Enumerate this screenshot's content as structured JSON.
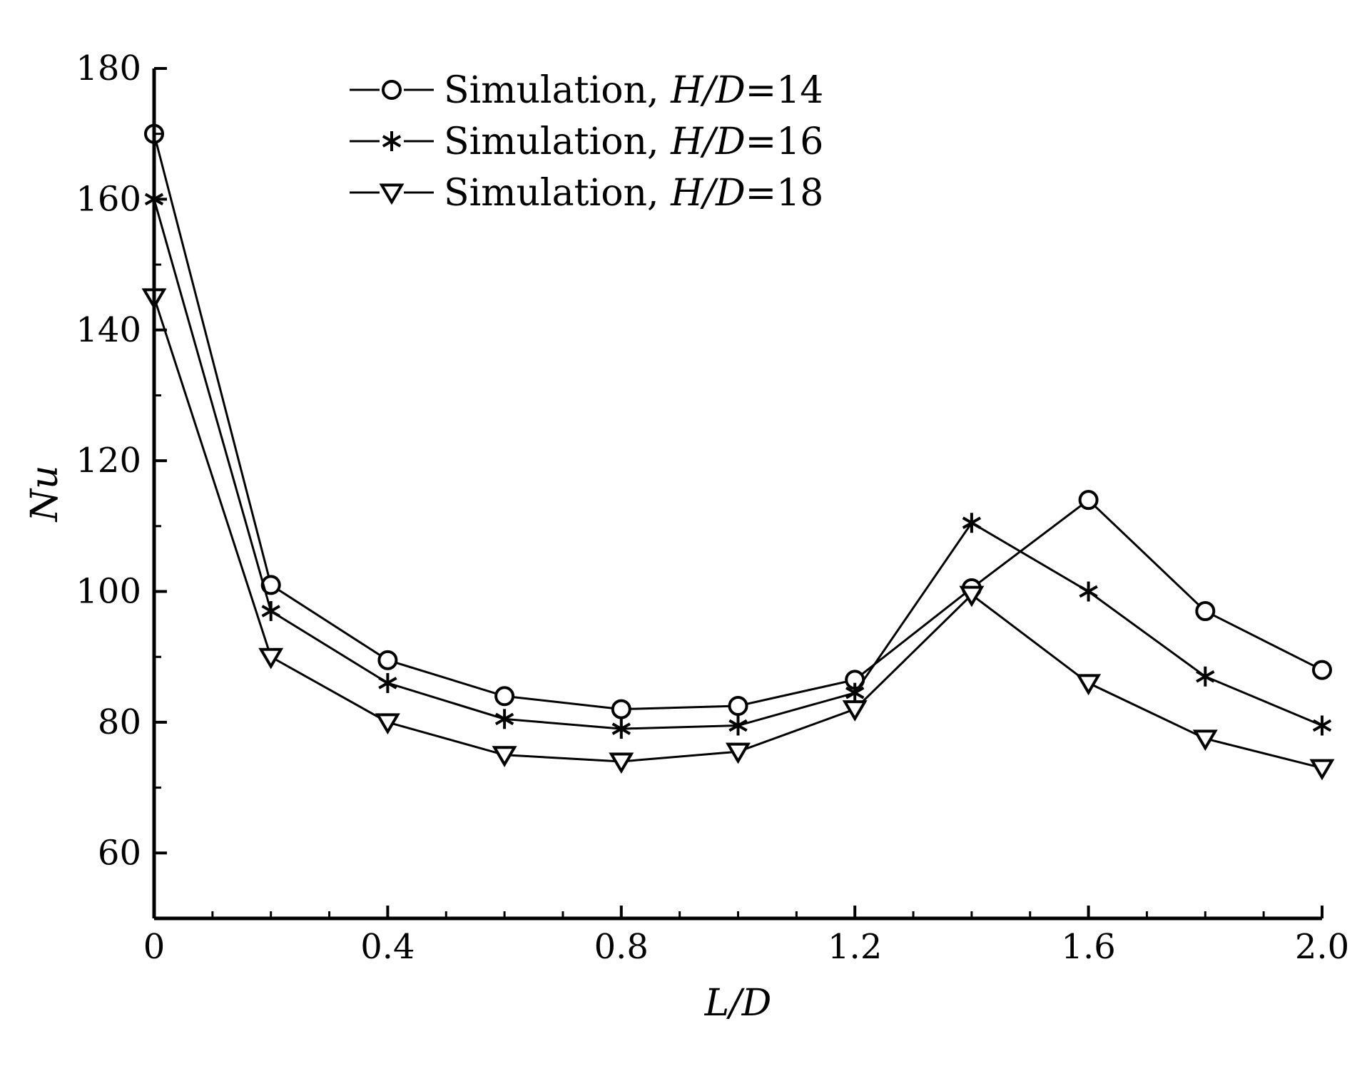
{
  "chart_data": {
    "type": "line",
    "xlabel": "L/D",
    "ylabel": "Nu",
    "xlim": [
      0,
      2.0
    ],
    "ylim": [
      50,
      180
    ],
    "x_ticks": [
      0,
      0.4,
      0.8,
      1.2,
      1.6,
      2.0
    ],
    "x_tick_labels": [
      "0",
      "0.4",
      "0.8",
      "1.2",
      "1.6",
      "2.0"
    ],
    "y_ticks": [
      60,
      80,
      100,
      120,
      140,
      160,
      180
    ],
    "y_tick_labels": [
      "60",
      "80",
      "100",
      "120",
      "140",
      "160",
      "180"
    ],
    "grid": false,
    "legend_position": "top-center",
    "x": [
      0,
      0.2,
      0.4,
      0.6,
      0.8,
      1.0,
      1.2,
      1.4,
      1.6,
      1.8,
      2.0
    ],
    "series": [
      {
        "name_prefix": "Simulation, ",
        "name_italic": "H/D",
        "name_suffix": "=14",
        "marker": "circle",
        "values": [
          170,
          101,
          89.5,
          84,
          82,
          82.5,
          86.5,
          100.5,
          114,
          97,
          88
        ]
      },
      {
        "name_prefix": "Simulation, ",
        "name_italic": "H/D",
        "name_suffix": "=16",
        "marker": "asterisk",
        "values": [
          160,
          97,
          86,
          80.5,
          79,
          79.5,
          84.5,
          110.5,
          100,
          87,
          79.5
        ]
      },
      {
        "name_prefix": "Simulation, ",
        "name_italic": "H/D",
        "name_suffix": "=18",
        "marker": "triangle-down",
        "values": [
          145,
          90,
          80,
          75,
          74,
          75.5,
          82,
          99.5,
          86,
          77.5,
          73
        ]
      }
    ]
  }
}
